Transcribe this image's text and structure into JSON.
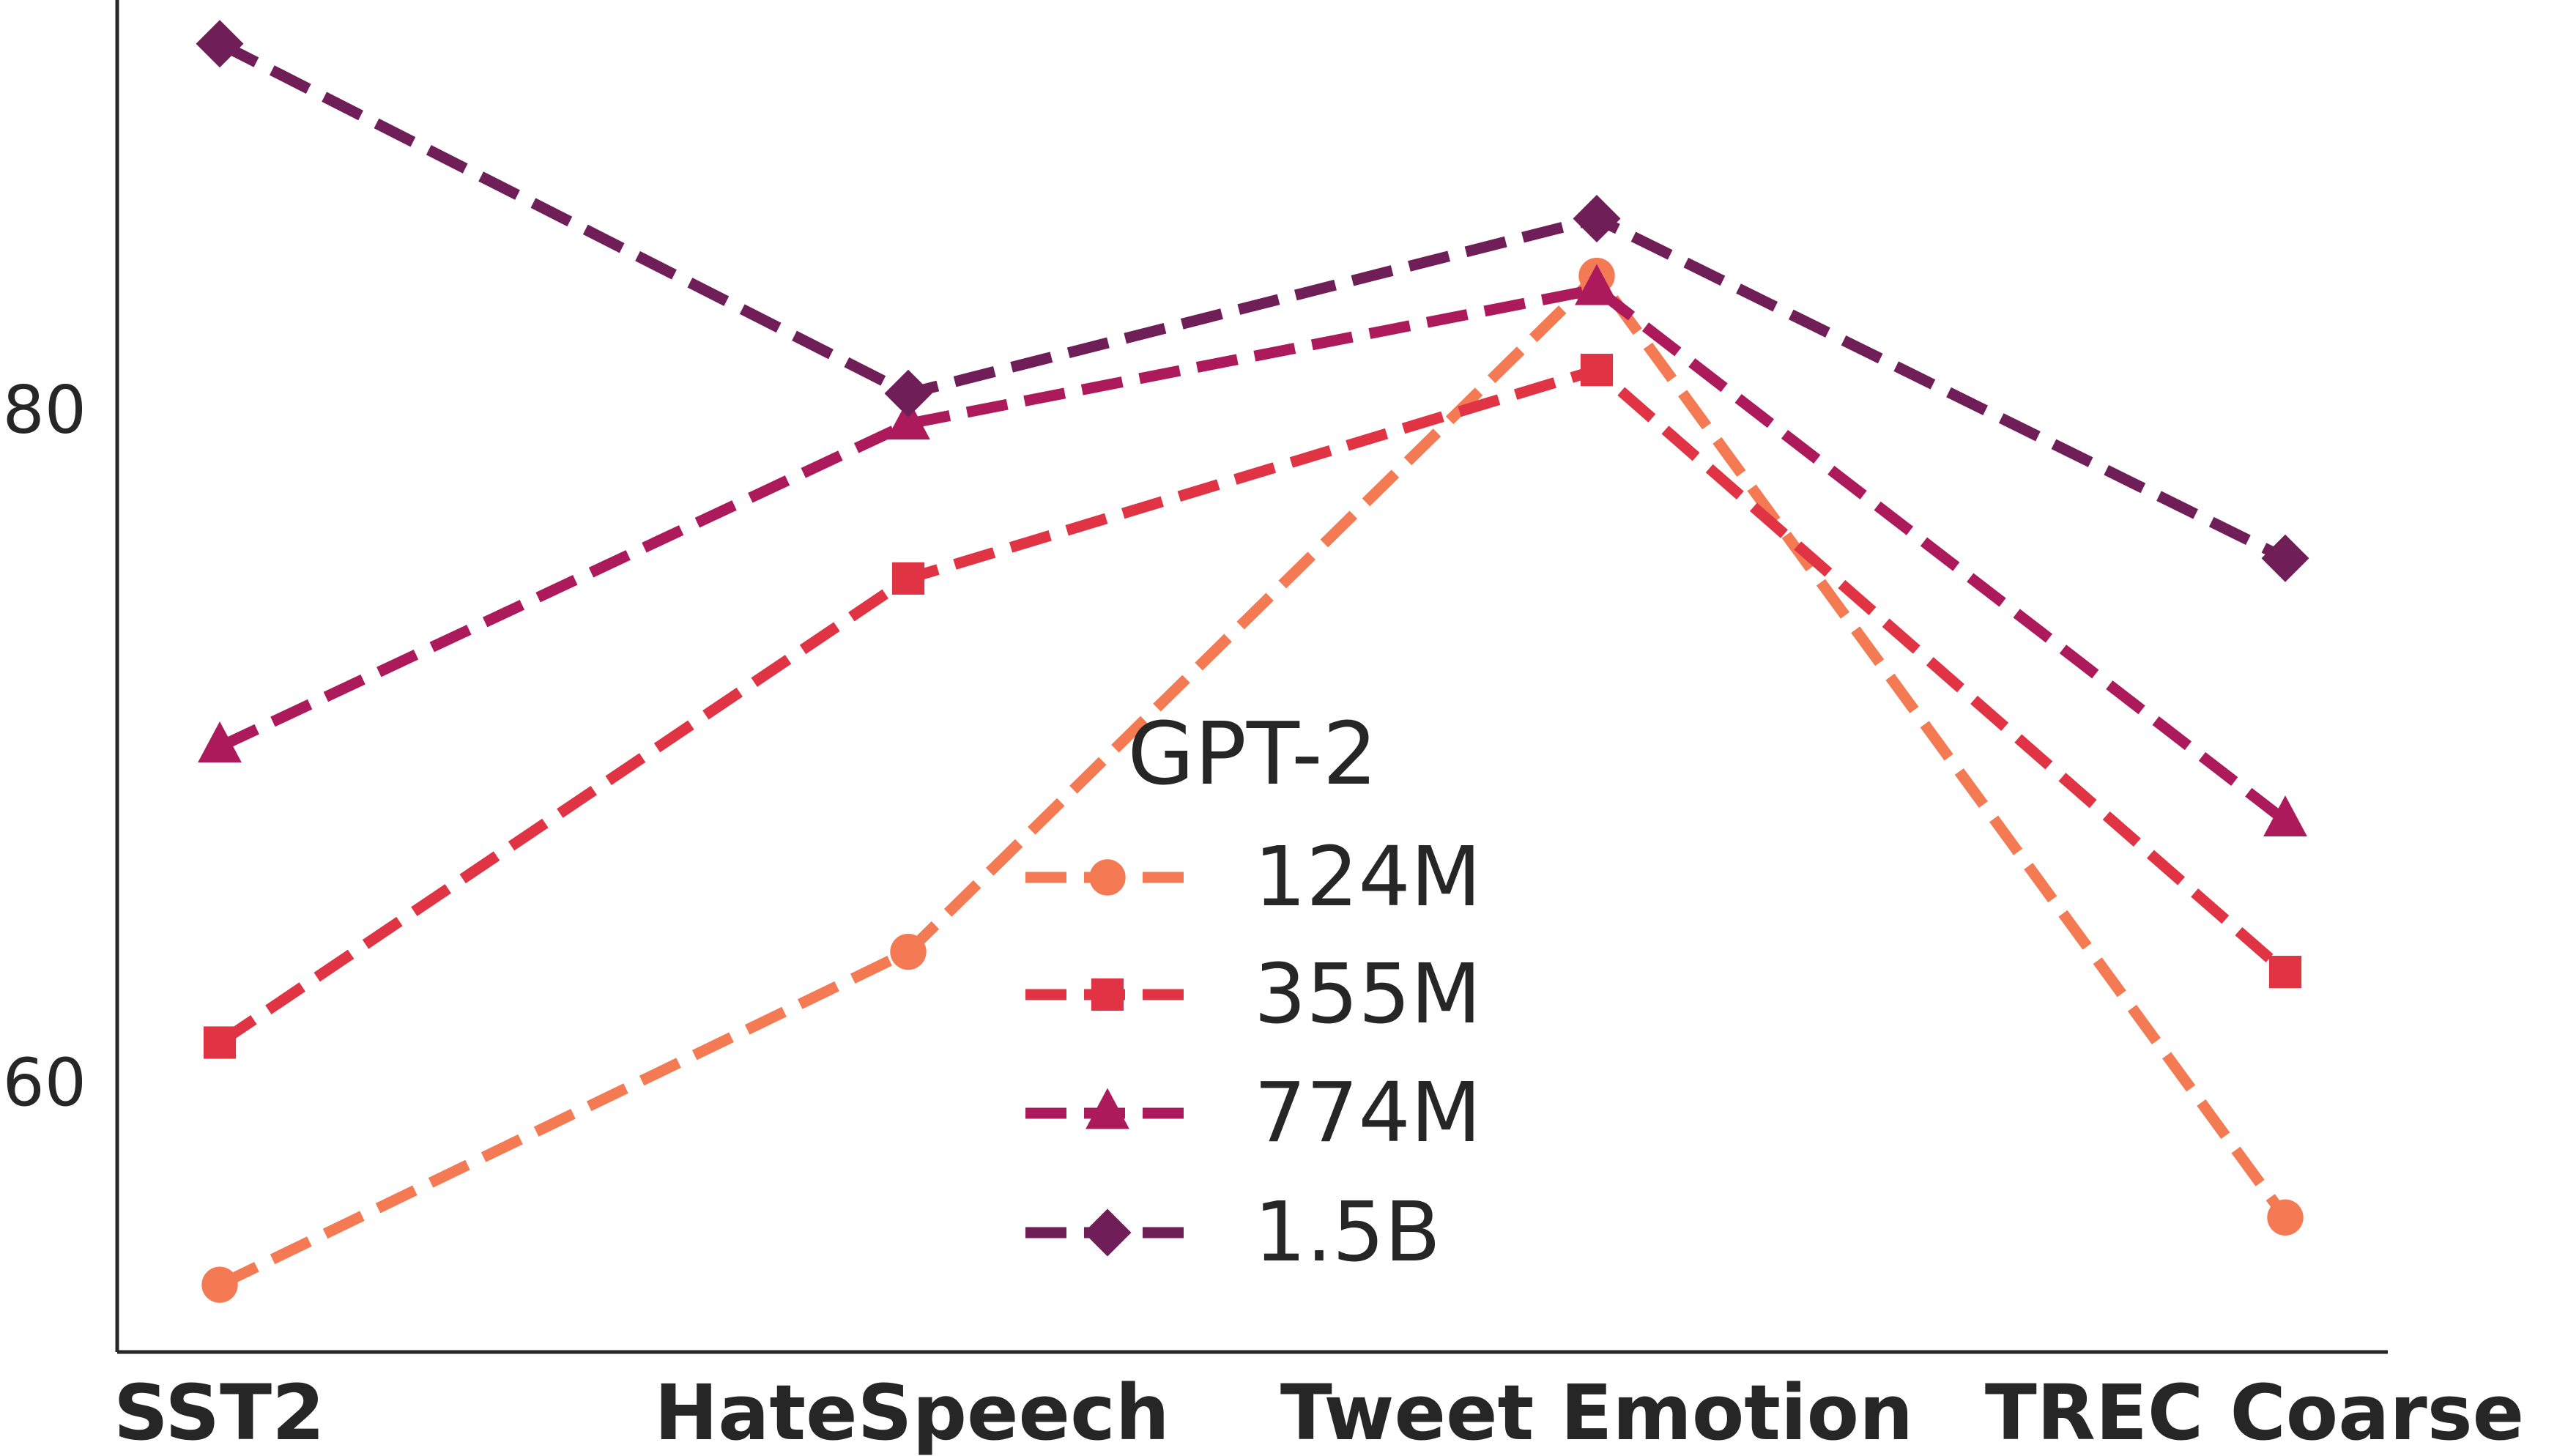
{
  "chart_data": {
    "type": "line",
    "categories": [
      "SST2",
      "HateSpeech",
      "Tweet Emotion",
      "TREC Coarse"
    ],
    "yticks": [
      60,
      80
    ],
    "ylim": [
      52.0,
      92.2
    ],
    "grid": false,
    "legend": {
      "title": "GPT-2",
      "placement": "center"
    },
    "series": [
      {
        "name": "124M",
        "values": [
          54.0,
          63.9,
          84.0,
          56.0
        ],
        "color": "#f47a54",
        "marker": "circle"
      },
      {
        "name": "355M",
        "values": [
          61.2,
          75.0,
          81.2,
          63.3
        ],
        "color": "#e03445",
        "marker": "square"
      },
      {
        "name": "774M",
        "values": [
          70.0,
          79.6,
          83.6,
          67.8
        ],
        "color": "#ac1a5c",
        "marker": "triangle"
      },
      {
        "name": "1.5B",
        "values": [
          90.9,
          80.5,
          85.7,
          75.6
        ],
        "color": "#701e58",
        "marker": "diamond"
      }
    ]
  }
}
